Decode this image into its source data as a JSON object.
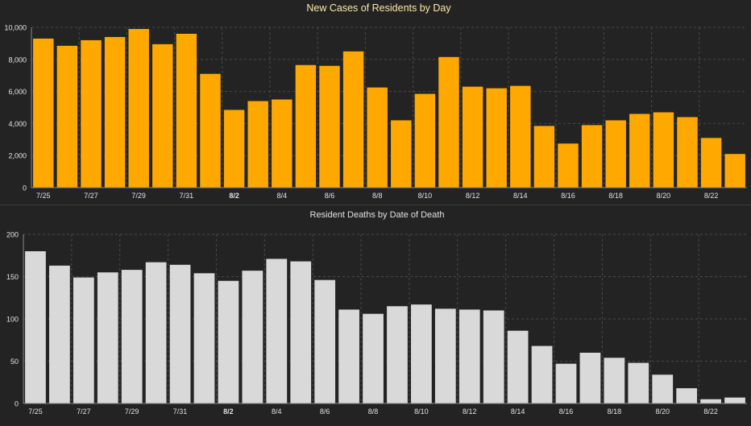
{
  "colors": {
    "background": "#232323",
    "grid": "#4a4a4a",
    "axis_text": "#e2e2e2",
    "cases_title": "#ffe9a6",
    "deaths_title": "#e2e2e2",
    "cases_bar": "#ffa800",
    "deaths_bar": "#d9d9d9"
  },
  "chart_data": [
    {
      "type": "bar",
      "title": "New Cases of Residents by Day",
      "xlabel": "",
      "ylabel": "",
      "ylim": [
        0,
        10000
      ],
      "yticks": [
        "0",
        "2,000",
        "4,000",
        "6,000",
        "8,000",
        "10,000"
      ],
      "grid": true,
      "categories": [
        "7/25",
        "7/26",
        "7/27",
        "7/28",
        "7/29",
        "7/30",
        "7/31",
        "8/1",
        "8/2",
        "8/3",
        "8/4",
        "8/5",
        "8/6",
        "8/7",
        "8/8",
        "8/9",
        "8/10",
        "8/11",
        "8/12",
        "8/13",
        "8/14",
        "8/15",
        "8/16",
        "8/17",
        "8/18",
        "8/19",
        "8/20",
        "8/21",
        "8/22",
        "8/23"
      ],
      "tick_labels": [
        "7/25",
        "7/27",
        "7/29",
        "7/31",
        "8/2",
        "8/4",
        "8/6",
        "8/8",
        "8/10",
        "8/12",
        "8/14",
        "8/16",
        "8/18",
        "8/20",
        "8/22"
      ],
      "bold_tick": "8/2",
      "values": [
        9300,
        8850,
        9200,
        9400,
        9900,
        8950,
        9600,
        7100,
        4850,
        5400,
        5500,
        7650,
        7600,
        8500,
        6250,
        4200,
        5850,
        8150,
        6300,
        6200,
        6350,
        3850,
        2750,
        3900,
        4200,
        4600,
        4700,
        4400,
        3100,
        2100
      ]
    },
    {
      "type": "bar",
      "title": "Resident Deaths by Date of Death",
      "xlabel": "",
      "ylabel": "",
      "ylim": [
        0,
        200
      ],
      "yticks": [
        "0",
        "50",
        "100",
        "150",
        "200"
      ],
      "grid": true,
      "categories": [
        "7/25",
        "7/26",
        "7/27",
        "7/28",
        "7/29",
        "7/30",
        "7/31",
        "8/1",
        "8/2",
        "8/3",
        "8/4",
        "8/5",
        "8/6",
        "8/7",
        "8/8",
        "8/9",
        "8/10",
        "8/11",
        "8/12",
        "8/13",
        "8/14",
        "8/15",
        "8/16",
        "8/17",
        "8/18",
        "8/19",
        "8/20",
        "8/21",
        "8/22",
        "8/23"
      ],
      "tick_labels": [
        "7/25",
        "7/27",
        "7/29",
        "7/31",
        "8/2",
        "8/4",
        "8/6",
        "8/8",
        "8/10",
        "8/12",
        "8/14",
        "8/16",
        "8/18",
        "8/20",
        "8/22"
      ],
      "bold_tick": "8/2",
      "values": [
        180,
        163,
        149,
        155,
        158,
        167,
        164,
        154,
        145,
        157,
        171,
        168,
        146,
        111,
        106,
        115,
        117,
        112,
        111,
        110,
        86,
        68,
        47,
        60,
        54,
        48,
        34,
        18,
        5,
        7
      ]
    }
  ]
}
